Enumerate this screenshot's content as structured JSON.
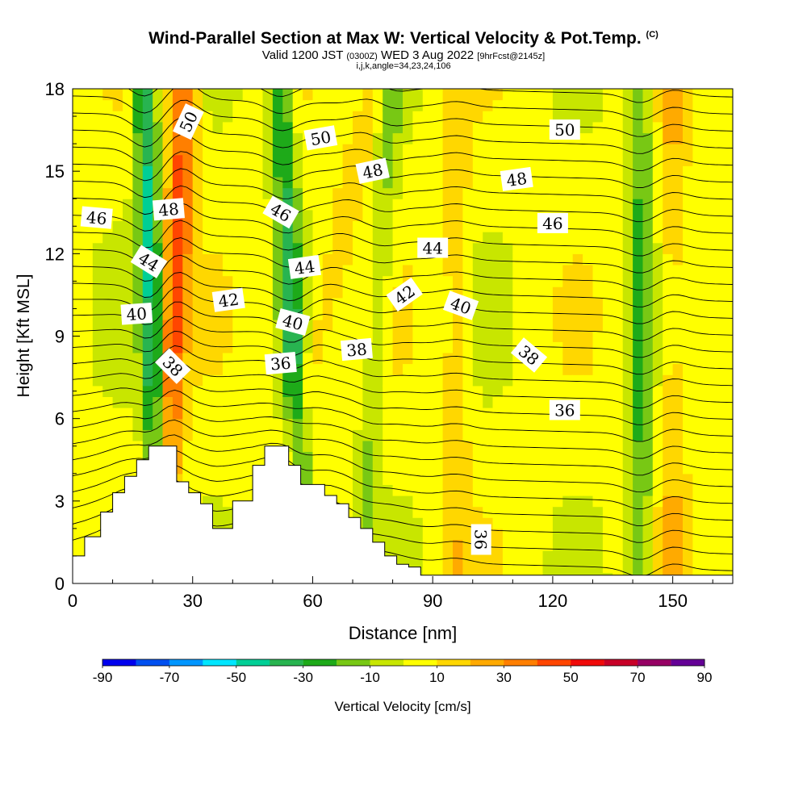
{
  "chart_data": {
    "type": "heatmap",
    "title": "Wind-Parallel Section at Max W: Vertical Velocity & Pot.Temp.",
    "title_mark": "(C)",
    "subtitle_parts": [
      "Valid 1200 JST",
      "(0300Z)",
      "WED 3 Aug 2022",
      "[9hrFcst@2145z]"
    ],
    "info_line": "i,j,k,angle=34,23,24,106",
    "xlabel": "Distance [nm]",
    "ylabel": "Height [Kft MSL]",
    "xlim": [
      0,
      165
    ],
    "ylim": [
      0,
      18
    ],
    "x_ticks": [
      "0",
      "30",
      "60",
      "90",
      "120",
      "150"
    ],
    "y_ticks": [
      "0",
      "3",
      "6",
      "9",
      "12",
      "15",
      "18"
    ],
    "colorbar": {
      "label": "Vertical Velocity [cm/s]",
      "tick_labels": [
        "-90",
        "-70",
        "-50",
        "-30",
        "-10",
        "10",
        "30",
        "50",
        "70",
        "90"
      ],
      "bounds": [
        -90,
        -80,
        -70,
        -60,
        -50,
        -40,
        -30,
        -20,
        -10,
        0,
        10,
        20,
        30,
        40,
        50,
        60,
        70,
        80,
        90
      ],
      "colors": [
        "#0000ee",
        "#0050f0",
        "#0096ff",
        "#00e6ff",
        "#00cf96",
        "#28b450",
        "#1eaa19",
        "#78c814",
        "#c8e600",
        "#ffff00",
        "#ffd700",
        "#ffaa00",
        "#ff7f00",
        "#ff4600",
        "#f00a0a",
        "#c80028",
        "#960064",
        "#640096"
      ]
    },
    "updraft_bands": [
      {
        "x": 25,
        "w": 40,
        "at_18": 28,
        "at_0": 22
      },
      {
        "x": 56,
        "w": 15,
        "at_18": 75,
        "at_0": 48
      },
      {
        "x": 96,
        "w": 12,
        "at_18": 96,
        "at_0": 96
      },
      {
        "x": 150,
        "w": 14,
        "at_18": 150,
        "at_0": 150
      }
    ],
    "downdraft_bands": [
      {
        "x": 23,
        "w": -45,
        "at_18": 18,
        "at_0": 22
      },
      {
        "x": 56,
        "w": -35,
        "at_18": 52,
        "at_0": 58
      },
      {
        "x": 80,
        "w": -15,
        "at_18": 80,
        "at_0": 72
      },
      {
        "x": 142,
        "w": -25,
        "at_18": 142,
        "at_0": 142
      }
    ],
    "terrain_profile": {
      "x": [
        0,
        3,
        3,
        7,
        7,
        10,
        10,
        13,
        13,
        16,
        16,
        19,
        19,
        22,
        22,
        26,
        26,
        29,
        29,
        32,
        32,
        35,
        35,
        40,
        40,
        45,
        45,
        48,
        48,
        51,
        51,
        54,
        54,
        57,
        57,
        60,
        60,
        63,
        63,
        66,
        66,
        69,
        69,
        72,
        72,
        75,
        75,
        78,
        78,
        81,
        81,
        84,
        84,
        87,
        87,
        90,
        90,
        165
      ],
      "h": [
        1.0,
        1.0,
        1.7,
        1.7,
        2.6,
        2.6,
        3.3,
        3.3,
        3.9,
        3.9,
        4.5,
        4.5,
        5.0,
        5.0,
        5.0,
        5.0,
        3.7,
        3.7,
        3.3,
        3.3,
        2.9,
        2.9,
        2.0,
        2.0,
        3.0,
        3.0,
        4.3,
        4.3,
        5.0,
        5.0,
        5.0,
        5.0,
        4.3,
        4.3,
        3.6,
        3.6,
        3.6,
        3.6,
        3.2,
        3.2,
        2.9,
        2.9,
        2.4,
        2.4,
        2.0,
        2.0,
        1.5,
        1.5,
        1.0,
        1.0,
        0.7,
        0.7,
        0.6,
        0.6,
        0.3,
        0.3,
        0.3,
        0.3
      ]
    },
    "isentrope_labels": [
      {
        "text": "50",
        "x": 29,
        "y": 16.8,
        "angle": -65
      },
      {
        "text": "50",
        "x": 62,
        "y": 16.2,
        "angle": -10
      },
      {
        "text": "50",
        "x": 123,
        "y": 16.5,
        "angle": 0
      },
      {
        "text": "48",
        "x": 75,
        "y": 15.0,
        "angle": -12
      },
      {
        "text": "48",
        "x": 111,
        "y": 14.7,
        "angle": -8
      },
      {
        "text": "48",
        "x": 24,
        "y": 13.6,
        "angle": -5
      },
      {
        "text": "46",
        "x": 6,
        "y": 13.3,
        "angle": 5
      },
      {
        "text": "46",
        "x": 52,
        "y": 13.5,
        "angle": 30
      },
      {
        "text": "46",
        "x": 120,
        "y": 13.1,
        "angle": 0
      },
      {
        "text": "44",
        "x": 19,
        "y": 11.7,
        "angle": 32
      },
      {
        "text": "44",
        "x": 58,
        "y": 11.5,
        "angle": -8
      },
      {
        "text": "44",
        "x": 90,
        "y": 12.2,
        "angle": 0
      },
      {
        "text": "42",
        "x": 39,
        "y": 10.3,
        "angle": -8
      },
      {
        "text": "42",
        "x": 83,
        "y": 10.5,
        "angle": -35
      },
      {
        "text": "40",
        "x": 16,
        "y": 9.8,
        "angle": -4
      },
      {
        "text": "40",
        "x": 55,
        "y": 9.5,
        "angle": 15
      },
      {
        "text": "40",
        "x": 97,
        "y": 10.1,
        "angle": 20
      },
      {
        "text": "38",
        "x": 25,
        "y": 7.9,
        "angle": 45
      },
      {
        "text": "38",
        "x": 71,
        "y": 8.5,
        "angle": -5
      },
      {
        "text": "38",
        "x": 114,
        "y": 8.3,
        "angle": 40
      },
      {
        "text": "36",
        "x": 52,
        "y": 8.0,
        "angle": -5
      },
      {
        "text": "36",
        "x": 123,
        "y": 6.3,
        "angle": 0
      },
      {
        "text": "36",
        "x": 102,
        "y": 1.6,
        "angle": 90
      }
    ]
  }
}
